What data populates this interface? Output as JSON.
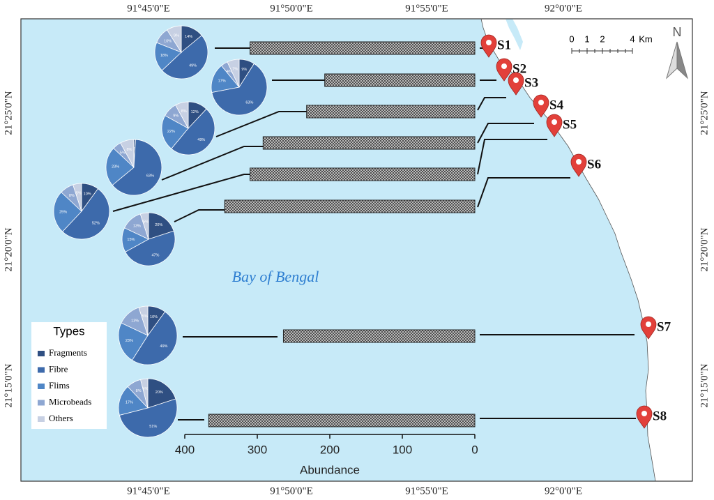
{
  "map": {
    "lon_labels": [
      "91°45'0\"E",
      "91°50'0\"E",
      "91°55'0\"E",
      "92°0'0\"E"
    ],
    "lat_labels": [
      "21°25'0\"N",
      "21°20'0\"N",
      "21°15'0\"N"
    ],
    "sea_label": "Bay of Bengal",
    "scale_labels": [
      "0",
      "1",
      "2",
      "4",
      "Km"
    ],
    "north": "N"
  },
  "legend": {
    "title": "Types",
    "items": [
      {
        "name": "Fragments",
        "color": "#2f4f82"
      },
      {
        "name": "Fibre",
        "color": "#3d6aab"
      },
      {
        "name": "Flims",
        "color": "#4f86c6"
      },
      {
        "name": "Microbeads",
        "color": "#8ea7d2"
      },
      {
        "name": "Others",
        "color": "#c7d0e3"
      }
    ]
  },
  "chart_data": [
    {
      "type": "bar",
      "orientation": "horizontal",
      "x_inverted": true,
      "categories": [
        "S1",
        "S2",
        "S3",
        "S4",
        "S5",
        "S6",
        "S7",
        "S8"
      ],
      "values": [
        310,
        207,
        232,
        292,
        310,
        345,
        264,
        367
      ],
      "color": "#9a9a9a",
      "xlim": [
        0,
        400
      ],
      "xticks": [
        400,
        300,
        200,
        100,
        0
      ],
      "x_label": "Abundance"
    },
    {
      "type": "pie",
      "values": [
        14,
        49,
        18,
        10,
        9
      ],
      "value_labels": [
        "14%",
        "49%",
        "18%",
        "10%",
        "9%"
      ]
    },
    {
      "type": "pie",
      "values": [
        9,
        63,
        17,
        4,
        7
      ],
      "value_labels": [
        "9%",
        "63%",
        "17%",
        "4%",
        "7%"
      ]
    },
    {
      "type": "pie",
      "values": [
        12,
        49,
        22,
        9,
        8
      ],
      "value_labels": [
        "12%",
        "49%",
        "22%",
        "9%",
        "8%"
      ]
    },
    {
      "type": "pie",
      "values": [
        1,
        63,
        23,
        5,
        8
      ],
      "value_labels": [
        "1%",
        "63%",
        "23%",
        "5%",
        "8%"
      ]
    },
    {
      "type": "pie",
      "values": [
        10,
        52,
        25,
        8,
        5
      ],
      "value_labels": [
        "10%",
        "52%",
        "25%",
        "8%",
        "5%"
      ]
    },
    {
      "type": "pie",
      "values": [
        20,
        47,
        15,
        13,
        5
      ],
      "value_labels": [
        "20%",
        "47%",
        "15%",
        "13%",
        "5%"
      ]
    },
    {
      "type": "pie",
      "values": [
        10,
        49,
        23,
        13,
        5
      ],
      "value_labels": [
        "10%",
        "49%",
        "23%",
        "13%",
        "5%"
      ]
    },
    {
      "type": "pie",
      "values": [
        20,
        51,
        17,
        8,
        4
      ],
      "value_labels": [
        "20%",
        "51%",
        "17%",
        "8%",
        "4%"
      ]
    }
  ]
}
